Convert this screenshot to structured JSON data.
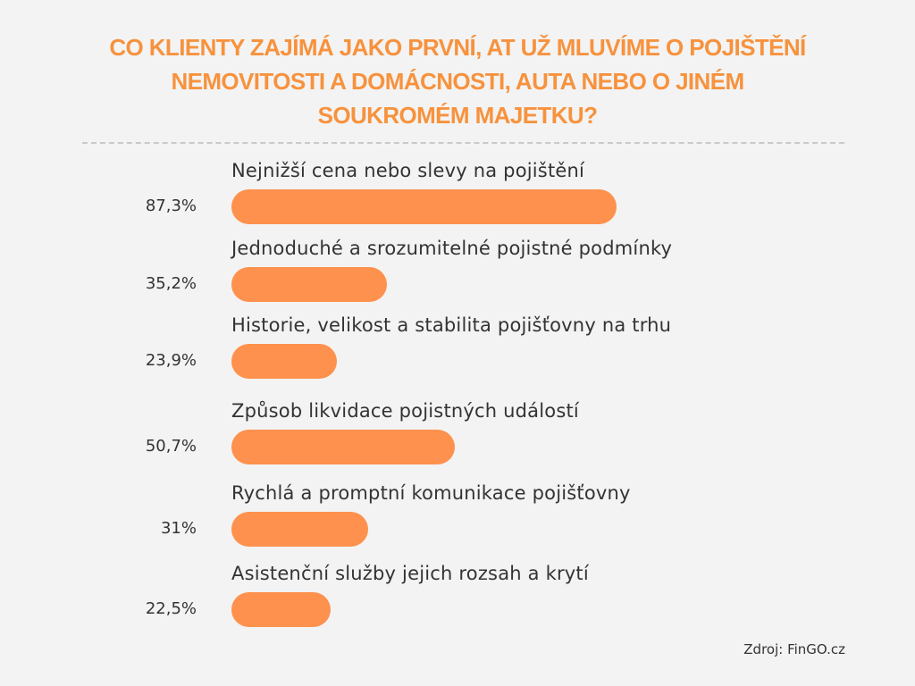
{
  "chart_data": {
    "type": "bar",
    "orientation": "horizontal",
    "title": "CO KLIENTY ZAJÍMÁ JAKO PRVNÍ, AT UŽ MLUVÍME O POJIŠTĚNÍ NEMOVITOSTI A DOMÁCNOSTI, AUTA NEBO O JINÉM SOUKROMÉM MAJETKU?",
    "title_lines": [
      "CO KLIENTY ZAJÍMÁ JAKO PRVNÍ, AT UŽ MLUVÍME O POJIŠTĚNÍ",
      "NEMOVITOSTI A DOMÁCNOSTI, AUTA NEBO O JINÉM",
      "SOUKROMÉM MAJETKU?"
    ],
    "categories": [
      "Nejnižší cena nebo slevy na pojištění",
      "Jednoduché a srozumitelné pojistné podmínky",
      "Historie, velikost a stabilita pojišťovny na trhu",
      "Způsob likvidace pojistných událostí",
      "Rychlá a promptní komunikace pojišťovny",
      "Asistenční služby jejich rozsah a krytí"
    ],
    "values": [
      87.3,
      35.2,
      23.9,
      50.7,
      31,
      22.5
    ],
    "value_labels": [
      "87,3%",
      "35,2%",
      "23,9%",
      "50,7%",
      "31%",
      "22,5%"
    ],
    "unit": "%",
    "bar_color": "#fe914d",
    "title_color": "#f7923d",
    "grid": false,
    "legend": "none"
  },
  "source": "Zdroj: FinGO.cz"
}
